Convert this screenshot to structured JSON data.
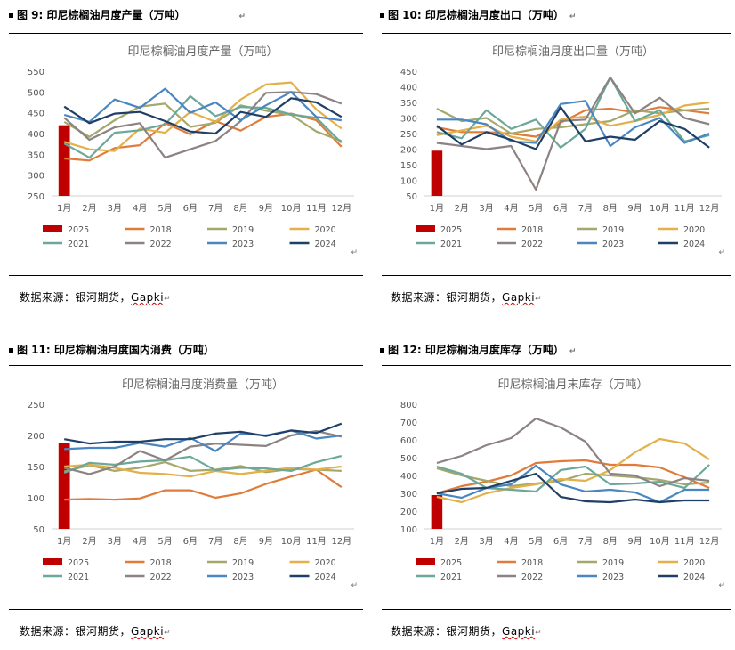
{
  "months": [
    "1月",
    "2月",
    "3月",
    "4月",
    "5月",
    "6月",
    "7月",
    "8月",
    "9月",
    "10月",
    "11月",
    "12月"
  ],
  "series_names": [
    "2025",
    "2018",
    "2019",
    "2020",
    "2021",
    "2022",
    "2023",
    "2024"
  ],
  "colors": {
    "2025": "#c00000",
    "2018": "#e07b39",
    "2019": "#a4a86a",
    "2020": "#e3b04b",
    "2021": "#6ba89a",
    "2022": "#8c8282",
    "2023": "#4a86c0",
    "2024": "#1f3f66"
  },
  "return_mark": "↵",
  "panels": [
    {
      "fig_label": "图 9:  印尼棕榈油月度产量（万吨）",
      "source_prefix": "数据来源：银河期货，",
      "source_org": "Gapki",
      "chart_data": {
        "type": "bar+line",
        "title": "印尼棕榈油月度产量（万吨）",
        "ylim": [
          250,
          550
        ],
        "yticks": [
          250,
          300,
          350,
          400,
          450,
          500,
          550
        ],
        "categories": [
          "1月",
          "2月",
          "3月",
          "4月",
          "5月",
          "6月",
          "7月",
          "8月",
          "9月",
          "10月",
          "11月",
          "12月"
        ],
        "bar_series": {
          "name": "2025",
          "values": [
            420
          ]
        },
        "series": [
          {
            "name": "2018",
            "values": [
              340,
              335,
              365,
              372,
              425,
              398,
              430,
              407,
              440,
              448,
              432,
              368
            ]
          },
          {
            "name": "2019",
            "values": [
              428,
              392,
              432,
              465,
              472,
              416,
              426,
              468,
              455,
              445,
              405,
              382
            ]
          },
          {
            "name": "2020",
            "values": [
              380,
              362,
              358,
              412,
              402,
              452,
              428,
              482,
              518,
              523,
              458,
              412
            ]
          },
          {
            "name": "2021",
            "values": [
              376,
              342,
              402,
              408,
              422,
              490,
              442,
              464,
              462,
              446,
              438,
              378
            ]
          },
          {
            "name": "2022",
            "values": [
              438,
              385,
              415,
              425,
              342,
              362,
              382,
              430,
              498,
              500,
              495,
              472
            ]
          },
          {
            "name": "2023",
            "values": [
              445,
              428,
              482,
              462,
              508,
              450,
              475,
              432,
              468,
              500,
              440,
              432
            ]
          },
          {
            "name": "2024",
            "values": [
              465,
              425,
              448,
              452,
              430,
              405,
              400,
              452,
              440,
              485,
              475,
              440
            ]
          }
        ]
      }
    },
    {
      "fig_label": "图 10:  印尼棕榈油月度出口（万吨）",
      "source_prefix": "数据来源：银河期货，",
      "source_org": "Gapki",
      "chart_data": {
        "type": "bar+line",
        "title": "印尼棕榈油月度出口量（万吨）",
        "ylim": [
          50,
          450
        ],
        "yticks": [
          50,
          100,
          150,
          200,
          250,
          300,
          350,
          400,
          450
        ],
        "categories": [
          "1月",
          "2月",
          "3月",
          "4月",
          "5月",
          "6月",
          "7月",
          "8月",
          "9月",
          "10月",
          "11月",
          "12月"
        ],
        "bar_series": {
          "name": "2025",
          "values": [
            195
          ]
        },
        "series": [
          {
            "name": "2018",
            "values": [
              270,
              255,
              255,
              250,
              240,
              285,
              325,
              330,
              318,
              335,
              325,
              315
            ]
          },
          {
            "name": "2019",
            "values": [
              330,
              290,
              300,
              250,
              265,
              270,
              280,
              290,
              325,
              315,
              325,
              330
            ]
          },
          {
            "name": "2020",
            "values": [
              245,
              260,
              275,
              240,
              225,
              295,
              305,
              275,
              290,
              310,
              340,
              350
            ]
          },
          {
            "name": "2021",
            "values": [
              255,
              235,
              325,
              265,
              295,
              205,
              265,
              430,
              290,
              325,
              225,
              245
            ]
          },
          {
            "name": "2022",
            "values": [
              220,
              210,
              200,
              210,
              70,
              290,
              295,
              430,
              315,
              365,
              300,
              280
            ]
          },
          {
            "name": "2023",
            "values": [
              295,
              295,
              280,
              225,
              220,
              345,
              355,
              210,
              270,
              300,
              220,
              250
            ]
          },
          {
            "name": "2024",
            "values": [
              275,
              215,
              255,
              230,
              200,
              335,
              225,
              240,
              230,
              290,
              265,
              205
            ]
          }
        ]
      }
    },
    {
      "fig_label": "图 11:  印尼棕榈油月度国内消费（万吨）",
      "source_prefix": "数据来源：银河期货，",
      "source_org": "Gapki",
      "chart_data": {
        "type": "bar+line",
        "title": "印尼棕榈油月度消费量（万吨）",
        "ylim": [
          50,
          250
        ],
        "yticks": [
          50,
          100,
          150,
          200,
          250
        ],
        "categories": [
          "1月",
          "2月",
          "3月",
          "4月",
          "5月",
          "6月",
          "7月",
          "8月",
          "9月",
          "10月",
          "11月",
          "12月"
        ],
        "bar_series": {
          "name": "2025",
          "values": [
            188
          ]
        },
        "series": [
          {
            "name": "2018",
            "values": [
              97,
              98,
              97,
              99,
              112,
              112,
              100,
              107,
              122,
              134,
              145,
              117
            ]
          },
          {
            "name": "2019",
            "values": [
              142,
              152,
              143,
              148,
              157,
              143,
              145,
              151,
              141,
              146,
              145,
              143
            ]
          },
          {
            "name": "2020",
            "values": [
              150,
              153,
              148,
              140,
              138,
              134,
              143,
              138,
              143,
              148,
              145,
              150
            ]
          },
          {
            "name": "2021",
            "values": [
              140,
              156,
              153,
              158,
              160,
              166,
              144,
              148,
              147,
              143,
              157,
              167
            ]
          },
          {
            "name": "2022",
            "values": [
              148,
              138,
              150,
              175,
              160,
              182,
              187,
              185,
              183,
              200,
              207,
              198
            ]
          },
          {
            "name": "2023",
            "values": [
              178,
              180,
              180,
              188,
              182,
              196,
              175,
              203,
              200,
              208,
              195,
              200
            ]
          },
          {
            "name": "2024",
            "values": [
              194,
              187,
              190,
              190,
              194,
              194,
              203,
              206,
              199,
              208,
              204,
              219
            ]
          }
        ]
      }
    },
    {
      "fig_label": "图 12:  印尼棕榈油月度库存（万吨）",
      "source_prefix": "数据来源：银河期货，",
      "source_org": "Gapki",
      "chart_data": {
        "type": "bar+line",
        "title": "印尼棕榈油月末库存（万吨）",
        "ylim": [
          100,
          800
        ],
        "yticks": [
          100,
          200,
          300,
          400,
          500,
          600,
          700,
          800
        ],
        "categories": [
          "1月",
          "2月",
          "3月",
          "4月",
          "5月",
          "6月",
          "7月",
          "8月",
          "9月",
          "10月",
          "11月",
          "12月"
        ],
        "bar_series": {
          "name": "2025",
          "values": [
            290
          ]
        },
        "series": [
          {
            "name": "2018",
            "values": [
              300,
              340,
              365,
              400,
              470,
              480,
              485,
              460,
              460,
              445,
              390,
              330
            ]
          },
          {
            "name": "2019",
            "values": [
              440,
              400,
              370,
              340,
              355,
              370,
              410,
              400,
              390,
              375,
              350,
              360
            ]
          },
          {
            "name": "2020",
            "values": [
              280,
              250,
              300,
              330,
              350,
              380,
              370,
              430,
              530,
              605,
              580,
              490
            ]
          },
          {
            "name": "2021",
            "values": [
              450,
              410,
              330,
              320,
              310,
              430,
              450,
              350,
              355,
              365,
              330,
              460
            ]
          },
          {
            "name": "2022",
            "values": [
              470,
              510,
              570,
              610,
              720,
              670,
              590,
              410,
              400,
              340,
              385,
              370
            ]
          },
          {
            "name": "2023",
            "values": [
              300,
              275,
              330,
              350,
              455,
              350,
              310,
              320,
              305,
              250,
              320,
              320
            ]
          },
          {
            "name": "2024",
            "values": [
              300,
              325,
              330,
              370,
              410,
              280,
              255,
              250,
              265,
              250,
              260,
              260
            ]
          }
        ]
      }
    }
  ]
}
